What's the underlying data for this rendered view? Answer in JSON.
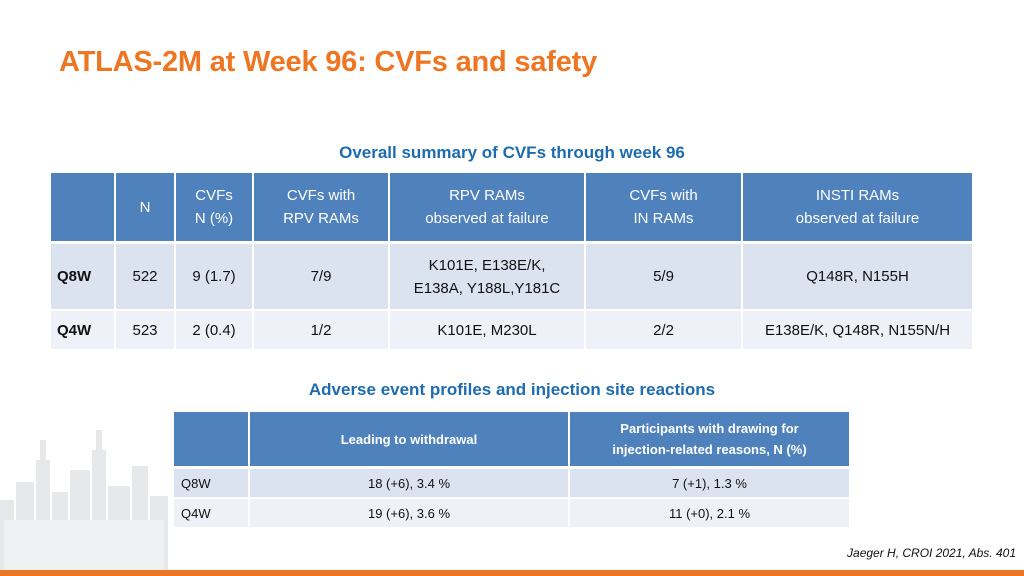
{
  "slide": {
    "title": "ATLAS-2M at Week 96: CVFs and safety",
    "citation": "Jaeger H, CROI 2021, Abs. 401"
  },
  "colors": {
    "title": "#ee7623",
    "subheading": "#1f6bb0",
    "header_fill": "#4f81bd",
    "row_fill_1": "#dce3f0",
    "row_fill_2": "#eef1f7",
    "accent_bar": "#ee7623"
  },
  "cvf_section": {
    "heading": "Overall summary of CVFs through week 96",
    "headers": [
      {
        "l1": "",
        "l2": ""
      },
      {
        "l1": "N",
        "l2": ""
      },
      {
        "l1": "CVFs",
        "l2": "N (%)"
      },
      {
        "l1": "CVFs with",
        "l2": "RPV RAMs"
      },
      {
        "l1": "RPV RAMs",
        "l2": "observed at failure"
      },
      {
        "l1": "CVFs with",
        "l2": "IN RAMs"
      },
      {
        "l1": "INSTI RAMs",
        "l2": "observed at failure"
      }
    ],
    "rows": [
      {
        "arm": "Q8W",
        "n": "522",
        "cvfs": "9 (1.7)",
        "cvfs_rpv": "7/9",
        "rpv_rams_l1": "K101E, E138E/K,",
        "rpv_rams_l2": "E138A, Y188L,Y181C",
        "cvfs_in": "5/9",
        "insti_rams": "Q148R, N155H"
      },
      {
        "arm": "Q4W",
        "n": "523",
        "cvfs": "2 (0.4)",
        "cvfs_rpv": "1/2",
        "rpv_rams_l1": "K101E, M230L",
        "rpv_rams_l2": "",
        "cvfs_in": "2/2",
        "insti_rams": "E138E/K, Q148R, N155N/H"
      }
    ]
  },
  "ae_section": {
    "heading": "Adverse event profiles and injection site reactions",
    "headers": [
      {
        "l1": "",
        "l2": ""
      },
      {
        "l1": "Leading to withdrawal",
        "l2": ""
      },
      {
        "l1": "Participants with drawing for",
        "l2": "injection-related reasons, N (%)"
      }
    ],
    "rows": [
      {
        "arm": "Q8W",
        "withdrawal": "18 (+6), 3.4 %",
        "injection": "7 (+1), 1.3 %"
      },
      {
        "arm": "Q4W",
        "withdrawal": "19 (+6), 3.6 %",
        "injection": "11 (+0), 2.1 %"
      }
    ]
  }
}
